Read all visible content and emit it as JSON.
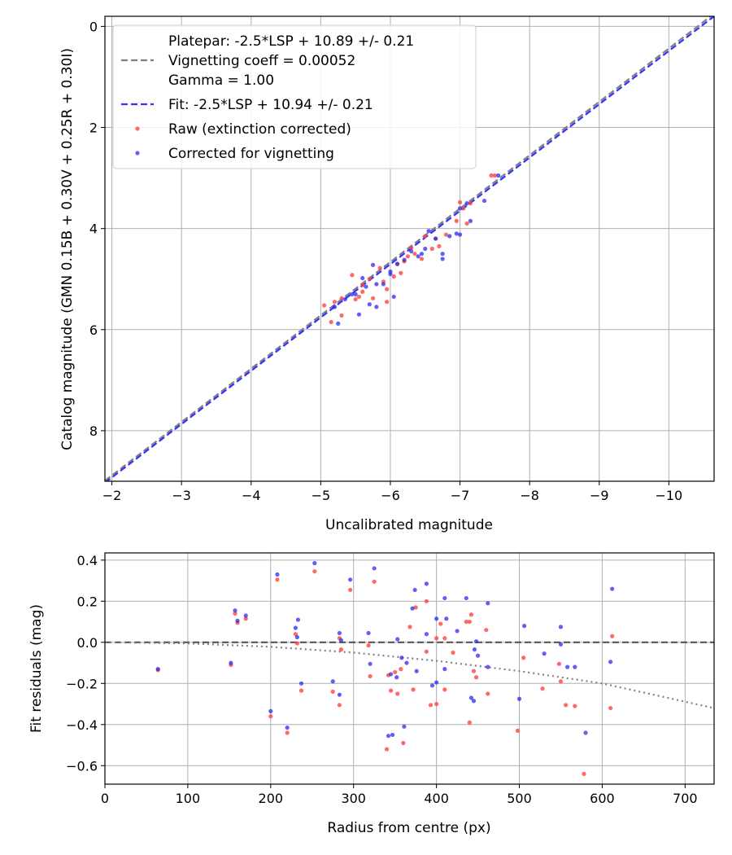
{
  "chart_data": [
    {
      "type": "scatter",
      "xlabel": "Uncalibrated magnitude",
      "ylabel": "Catalog magnitude (GMN 0.15B + 0.30V + 0.25R + 0.30I)",
      "xlim": [
        -1.9,
        -10.65
      ],
      "ylim": [
        9.0,
        -0.2
      ],
      "xticks": [
        -2,
        -3,
        -4,
        -5,
        -6,
        -7,
        -8,
        -9,
        -10
      ],
      "xtick_labels": [
        "−2",
        "−3",
        "−4",
        "−5",
        "−6",
        "−7",
        "−8",
        "−9",
        "−10"
      ],
      "yticks": [
        0,
        2,
        4,
        6,
        8
      ],
      "ytick_labels": [
        "0",
        "2",
        "4",
        "6",
        "8"
      ],
      "grid": true,
      "legend_position": "top-left",
      "legend": {
        "platepar": "Platepar: -2.5*LSP + 10.89 +/- 0.21",
        "vignetting": "Vignetting coeff = 0.00052",
        "gamma": "Gamma = 1.00",
        "fit": "Fit: -2.5*LSP + 10.94 +/- 0.21",
        "raw": "Raw (extinction corrected)",
        "corrected": "Corrected for vignetting"
      },
      "lines": [
        {
          "name": "Platepar",
          "color": "#808080",
          "style": "dashed",
          "x": [
            -1.9,
            -10.65
          ],
          "y": [
            8.99,
            -0.25
          ]
        },
        {
          "name": "Fit",
          "color": "#3333ff",
          "style": "dashed",
          "x": [
            -1.9,
            -10.65
          ],
          "y": [
            9.03,
            -0.2
          ]
        }
      ],
      "series": [
        {
          "name": "Raw (extinction corrected)",
          "color": "#ff4444",
          "points": [
            [
              -5.05,
              5.52
            ],
            [
              -5.2,
              5.45
            ],
            [
              -5.3,
              5.38
            ],
            [
              -5.45,
              4.92
            ],
            [
              -5.6,
              5.12
            ],
            [
              -5.5,
              5.4
            ],
            [
              -5.7,
              5.0
            ],
            [
              -5.75,
              5.38
            ],
            [
              -5.85,
              4.78
            ],
            [
              -5.95,
              5.2
            ],
            [
              -6.1,
              4.7
            ],
            [
              -6.15,
              4.88
            ],
            [
              -6.3,
              4.38
            ],
            [
              -6.05,
              4.95
            ],
            [
              -6.25,
              4.55
            ],
            [
              -6.45,
              4.6
            ],
            [
              -6.5,
              4.15
            ],
            [
              -6.6,
              4.4
            ],
            [
              -6.65,
              4.2
            ],
            [
              -6.8,
              4.12
            ],
            [
              -6.95,
              3.85
            ],
            [
              -7.0,
              3.48
            ],
            [
              -7.05,
              3.6
            ],
            [
              -7.15,
              3.5
            ],
            [
              -7.45,
              2.95
            ],
            [
              -7.5,
              2.95
            ],
            [
              -5.15,
              5.85
            ],
            [
              -5.3,
              5.72
            ],
            [
              -5.6,
              5.25
            ],
            [
              -5.9,
              5.05
            ],
            [
              -6.2,
              4.65
            ],
            [
              -6.35,
              4.5
            ],
            [
              -6.7,
              4.35
            ],
            [
              -7.1,
              3.9
            ],
            [
              -5.55,
              5.35
            ],
            [
              -5.95,
              5.45
            ]
          ]
        },
        {
          "name": "Corrected for vignetting",
          "color": "#2222ee",
          "points": [
            [
              -5.2,
              5.55
            ],
            [
              -5.25,
              5.88
            ],
            [
              -5.35,
              5.4
            ],
            [
              -5.5,
              5.3
            ],
            [
              -5.65,
              5.15
            ],
            [
              -5.7,
              5.5
            ],
            [
              -5.8,
              5.1
            ],
            [
              -5.75,
              4.72
            ],
            [
              -5.9,
              5.1
            ],
            [
              -6.0,
              4.85
            ],
            [
              -6.1,
              4.7
            ],
            [
              -6.2,
              4.62
            ],
            [
              -6.3,
              4.45
            ],
            [
              -6.4,
              4.55
            ],
            [
              -6.5,
              4.4
            ],
            [
              -6.55,
              4.05
            ],
            [
              -6.65,
              4.2
            ],
            [
              -6.75,
              4.5
            ],
            [
              -6.85,
              4.15
            ],
            [
              -6.95,
              4.1
            ],
            [
              -7.0,
              3.6
            ],
            [
              -7.1,
              3.5
            ],
            [
              -7.15,
              3.85
            ],
            [
              -7.35,
              3.45
            ],
            [
              -7.55,
              2.95
            ],
            [
              -5.45,
              5.3
            ],
            [
              -5.55,
              5.7
            ],
            [
              -5.6,
              4.98
            ],
            [
              -6.0,
              4.9
            ],
            [
              -6.45,
              4.5
            ],
            [
              -6.75,
              4.6
            ],
            [
              -5.8,
              5.55
            ],
            [
              -7.0,
              4.12
            ],
            [
              -6.05,
              5.35
            ]
          ]
        }
      ]
    },
    {
      "type": "scatter",
      "xlabel": "Radius from centre (px)",
      "ylabel": "Fit residuals (mag)",
      "xlim": [
        0,
        735
      ],
      "ylim": [
        -0.69,
        0.435
      ],
      "xticks": [
        0,
        100,
        200,
        300,
        400,
        500,
        600,
        700
      ],
      "xtick_labels": [
        "0",
        "100",
        "200",
        "300",
        "400",
        "500",
        "600",
        "700"
      ],
      "yticks": [
        0.4,
        0.2,
        0.0,
        -0.2,
        -0.4,
        -0.6
      ],
      "ytick_labels": [
        "0.4",
        "0.2",
        "0.0",
        "−0.2",
        "−0.4",
        "−0.6"
      ],
      "grid": true,
      "lines": [
        {
          "name": "zero",
          "color": "#555555",
          "style": "dashed",
          "x": [
            0,
            735
          ],
          "y": [
            0,
            0
          ]
        },
        {
          "name": "vignetting model",
          "color": "#808080",
          "style": "dotted",
          "x": [
            0,
            100,
            200,
            300,
            400,
            500,
            600,
            735
          ],
          "y": [
            0,
            -0.005,
            -0.022,
            -0.05,
            -0.09,
            -0.14,
            -0.2,
            -0.32
          ]
        }
      ],
      "series": [
        {
          "name": "Raw (extinction corrected)",
          "color": "#ff4444",
          "points": [
            [
              64,
              -0.135
            ],
            [
              152,
              -0.11
            ],
            [
              157,
              0.14
            ],
            [
              160,
              0.095
            ],
            [
              170,
              0.115
            ],
            [
              200,
              -0.36
            ],
            [
              208,
              0.305
            ],
            [
              220,
              -0.44
            ],
            [
              230,
              0.04
            ],
            [
              232,
              -0.005
            ],
            [
              237,
              -0.235
            ],
            [
              253,
              0.345
            ],
            [
              275,
              -0.24
            ],
            [
              283,
              -0.305
            ],
            [
              283,
              0.02
            ],
            [
              285,
              -0.035
            ],
            [
              296,
              0.255
            ],
            [
              318,
              -0.015
            ],
            [
              320,
              -0.165
            ],
            [
              325,
              0.295
            ],
            [
              345,
              -0.235
            ],
            [
              350,
              -0.145
            ],
            [
              353,
              -0.25
            ],
            [
              357,
              -0.13
            ],
            [
              360,
              -0.49
            ],
            [
              368,
              0.075
            ],
            [
              372,
              -0.23
            ],
            [
              375,
              0.17
            ],
            [
              388,
              0.2
            ],
            [
              393,
              -0.305
            ],
            [
              400,
              0.02
            ],
            [
              400,
              -0.3
            ],
            [
              405,
              0.09
            ],
            [
              410,
              0.02
            ],
            [
              410,
              -0.23
            ],
            [
              420,
              -0.05
            ],
            [
              436,
              0.1
            ],
            [
              440,
              -0.39
            ],
            [
              442,
              0.135
            ],
            [
              445,
              -0.14
            ],
            [
              448,
              -0.17
            ],
            [
              460,
              0.06
            ],
            [
              462,
              -0.25
            ],
            [
              498,
              -0.43
            ],
            [
              505,
              -0.075
            ],
            [
              528,
              -0.225
            ],
            [
              548,
              -0.105
            ],
            [
              550,
              -0.19
            ],
            [
              556,
              -0.305
            ],
            [
              567,
              -0.31
            ],
            [
              578,
              -0.64
            ],
            [
              610,
              -0.32
            ],
            [
              612,
              0.03
            ],
            [
              340,
              -0.52
            ],
            [
              342,
              -0.16
            ],
            [
              388,
              -0.045
            ],
            [
              440,
              0.1
            ]
          ]
        },
        {
          "name": "Corrected for vignetting",
          "color": "#2222ee",
          "points": [
            [
              64,
              -0.13
            ],
            [
              152,
              -0.1
            ],
            [
              157,
              0.155
            ],
            [
              160,
              0.105
            ],
            [
              170,
              0.13
            ],
            [
              200,
              -0.335
            ],
            [
              208,
              0.33
            ],
            [
              220,
              -0.415
            ],
            [
              230,
              0.07
            ],
            [
              232,
              0.025
            ],
            [
              233,
              0.11
            ],
            [
              237,
              -0.2
            ],
            [
              253,
              0.385
            ],
            [
              275,
              -0.19
            ],
            [
              283,
              0.045
            ],
            [
              283,
              -0.255
            ],
            [
              285,
              0.01
            ],
            [
              296,
              0.305
            ],
            [
              318,
              0.045
            ],
            [
              320,
              -0.105
            ],
            [
              325,
              0.36
            ],
            [
              342,
              -0.455
            ],
            [
              345,
              -0.155
            ],
            [
              352,
              -0.17
            ],
            [
              353,
              0.015
            ],
            [
              358,
              -0.075
            ],
            [
              361,
              -0.41
            ],
            [
              371,
              0.165
            ],
            [
              374,
              0.255
            ],
            [
              376,
              -0.14
            ],
            [
              388,
              0.285
            ],
            [
              388,
              0.04
            ],
            [
              395,
              -0.21
            ],
            [
              400,
              0.115
            ],
            [
              400,
              -0.195
            ],
            [
              410,
              -0.13
            ],
            [
              410,
              0.215
            ],
            [
              412,
              0.115
            ],
            [
              425,
              0.055
            ],
            [
              436,
              0.215
            ],
            [
              442,
              -0.27
            ],
            [
              445,
              -0.285
            ],
            [
              446,
              -0.035
            ],
            [
              448,
              0.005
            ],
            [
              450,
              -0.065
            ],
            [
              462,
              0.19
            ],
            [
              462,
              -0.12
            ],
            [
              500,
              -0.275
            ],
            [
              506,
              0.08
            ],
            [
              530,
              -0.055
            ],
            [
              550,
              0.075
            ],
            [
              550,
              -0.01
            ],
            [
              558,
              -0.12
            ],
            [
              567,
              -0.12
            ],
            [
              580,
              -0.44
            ],
            [
              610,
              -0.095
            ],
            [
              612,
              0.26
            ],
            [
              347,
              -0.45
            ],
            [
              364,
              -0.1
            ]
          ]
        }
      ]
    }
  ]
}
